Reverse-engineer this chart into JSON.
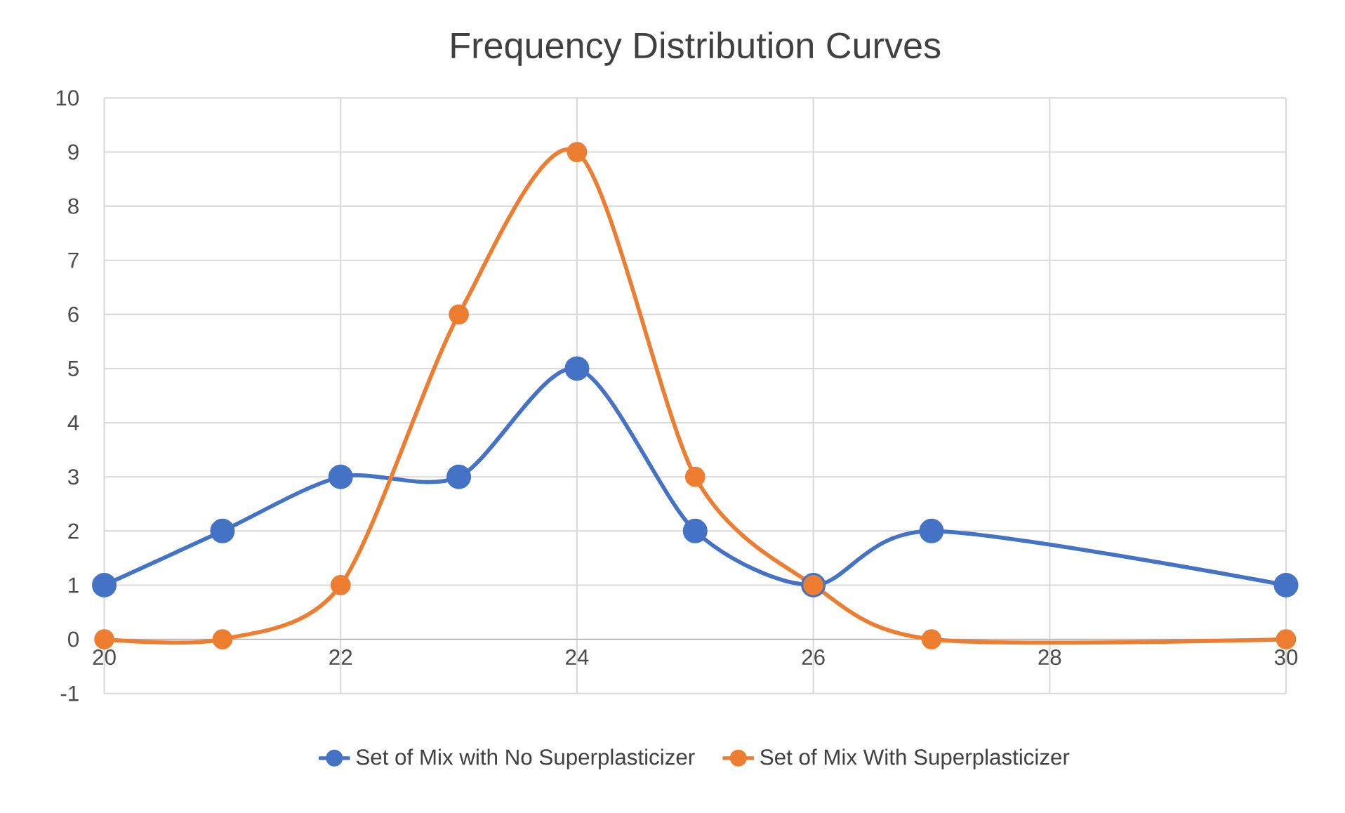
{
  "chart_data": {
    "type": "line",
    "title": "Frequency Distribution Curves",
    "x": [
      20,
      21,
      22,
      23,
      24,
      25,
      26,
      27,
      30
    ],
    "series": [
      {
        "name": "Set of Mix with No Superplasticizer",
        "color": "#4472c4",
        "values": [
          1,
          2,
          3,
          3,
          5,
          2,
          1,
          2,
          1
        ]
      },
      {
        "name": "Set of Mix With Superplasticizer",
        "color": "#ed7d31",
        "values": [
          0,
          0,
          1,
          6,
          9,
          3,
          1,
          0,
          0
        ]
      }
    ],
    "xlim": [
      20,
      30
    ],
    "xticks": [
      20,
      22,
      24,
      26,
      28,
      30
    ],
    "ylim": [
      -1,
      10
    ],
    "yticks": [
      -1,
      0,
      1,
      2,
      3,
      4,
      5,
      6,
      7,
      8,
      9,
      10
    ],
    "grid": true,
    "legend": "bottom",
    "marker": "circle",
    "line_style": "solid"
  }
}
